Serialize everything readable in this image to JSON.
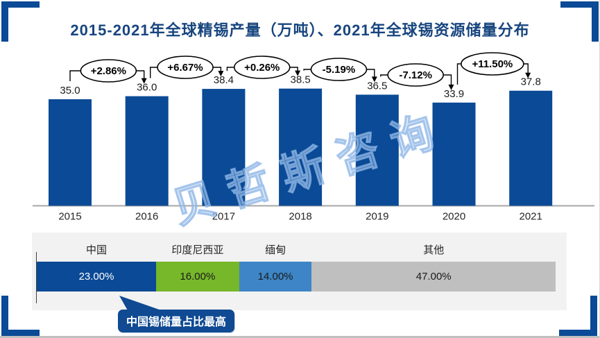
{
  "title": "2015-2021年全球精锡产量（万吨）、2021年全球锡资源储量分布",
  "watermark": "贝哲斯咨询",
  "colors": {
    "navy": "#0a4a96",
    "title": "#17457e",
    "green": "#76b82a",
    "mid_blue": "#3d85c6",
    "gray_segment": "#bfbfbf",
    "panel_bg": "#f2f2f2",
    "axis_line": "#a6a6a6",
    "label_text": "#262626"
  },
  "chart_data": [
    {
      "type": "bar",
      "title": "2015-2021年全球精锡产量（万吨）",
      "categories": [
        "2015",
        "2016",
        "2017",
        "2018",
        "2019",
        "2020",
        "2021"
      ],
      "values": [
        35.0,
        36.0,
        38.4,
        38.5,
        36.5,
        33.9,
        37.8
      ],
      "value_labels": [
        "35.0",
        "36.0",
        "38.4",
        "38.5",
        "36.5",
        "33.9",
        "37.8"
      ],
      "growth_callouts": [
        "+2.86%",
        "+6.67%",
        "+0.26%",
        "-5.19%",
        "-7.12%",
        "+11.50%"
      ],
      "xlabel": "",
      "ylabel": "",
      "ylim": [
        0,
        45
      ],
      "grid": false,
      "legend": "none",
      "bar_color": "#0a4a96"
    },
    {
      "type": "bar",
      "subtype": "stacked-horizontal",
      "title": "2021年全球锡资源储量分布",
      "categories": [
        "中国",
        "印度尼西亚",
        "缅甸",
        "其他"
      ],
      "values": [
        23,
        16,
        14,
        47
      ],
      "value_labels": [
        "23.00%",
        "16.00%",
        "14.00%",
        "47.00%"
      ],
      "segment_colors": [
        "#0a4a96",
        "#76b82a",
        "#3d85c6",
        "#bfbfbf"
      ],
      "segment_text_colors": [
        "#ffffff",
        "#1a1a1a",
        "#1a1a1a",
        "#1a1a1a"
      ],
      "legend": "labels-above-segments"
    }
  ],
  "annotation": {
    "text": "中国锡储量占比最高"
  }
}
